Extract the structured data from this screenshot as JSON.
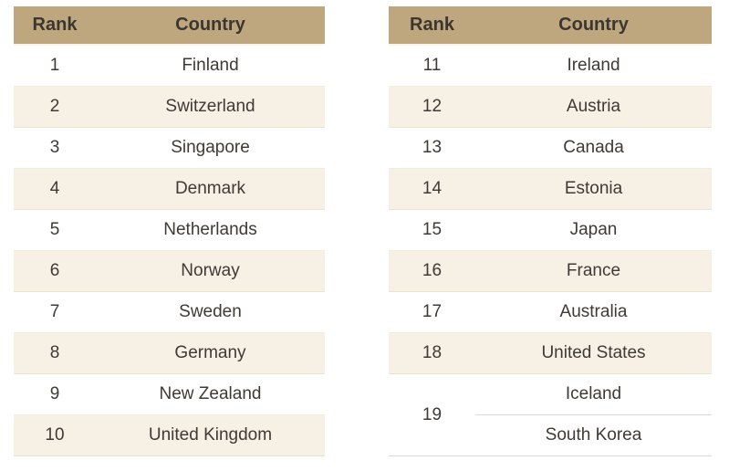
{
  "chart_data": {
    "type": "table",
    "title": "",
    "tables": [
      {
        "headers": {
          "rank": "Rank",
          "country": "Country"
        },
        "rows": [
          {
            "rank": 1,
            "country": "Finland"
          },
          {
            "rank": 2,
            "country": "Switzerland"
          },
          {
            "rank": 3,
            "country": "Singapore"
          },
          {
            "rank": 4,
            "country": "Denmark"
          },
          {
            "rank": 5,
            "country": "Netherlands"
          },
          {
            "rank": 6,
            "country": "Norway"
          },
          {
            "rank": 7,
            "country": "Sweden"
          },
          {
            "rank": 8,
            "country": "Germany"
          },
          {
            "rank": 9,
            "country": "New Zealand"
          },
          {
            "rank": 10,
            "country": "United Kingdom"
          }
        ]
      },
      {
        "headers": {
          "rank": "Rank",
          "country": "Country"
        },
        "rows": [
          {
            "rank": 11,
            "country": "Ireland"
          },
          {
            "rank": 12,
            "country": "Austria"
          },
          {
            "rank": 13,
            "country": "Canada"
          },
          {
            "rank": 14,
            "country": "Estonia"
          },
          {
            "rank": 15,
            "country": "Japan"
          },
          {
            "rank": 16,
            "country": "France"
          },
          {
            "rank": 17,
            "country": "Australia"
          },
          {
            "rank": 18,
            "country": "United States"
          }
        ],
        "tie": {
          "rank": 19,
          "countries": [
            "Iceland",
            "South Korea"
          ]
        }
      }
    ]
  },
  "colors": {
    "header_bg": "#BEA77F",
    "header_text": "#3B362F",
    "row_bg": "#FFFFFF",
    "row_alt_bg": "#F7F0E5",
    "body_text": "#3E3A35",
    "tie_divider": "#D9D9D9"
  }
}
